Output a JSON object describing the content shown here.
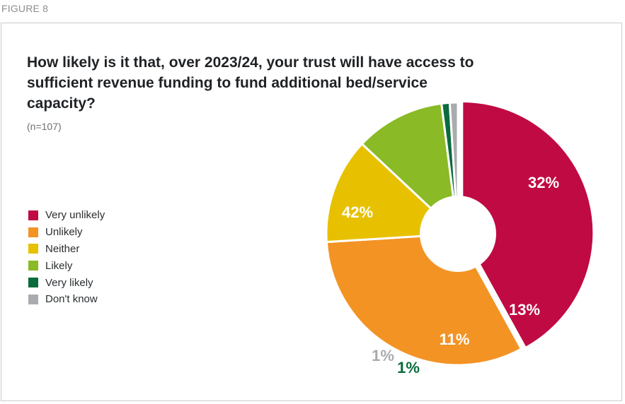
{
  "figure_label": "FIGURE 8",
  "chart_data": {
    "type": "pie",
    "title": "How likely is it that, over 2023/24, your trust will have access to sufficient revenue funding to fund additional bed/service capacity?",
    "subtitle": "(n=107)",
    "legend_position": "left",
    "categories": [
      "Very unlikely",
      "Unlikely",
      "Neither",
      "Likely",
      "Very likely",
      "Don't know"
    ],
    "values": [
      42,
      32,
      13,
      11,
      1,
      1
    ],
    "data_labels": [
      "42%",
      "32%",
      "13%",
      "11%",
      "1%",
      "1%"
    ],
    "colors": [
      "#c00a43",
      "#f39324",
      "#e7c100",
      "#8aba25",
      "#0a6b3c",
      "#a9abae"
    ],
    "label_colors": [
      "#ffffff",
      "#ffffff",
      "#ffffff",
      "#ffffff",
      "#0a6b3c",
      "#a9abae"
    ],
    "exploded": [
      "Very unlikely"
    ],
    "donut_hole": true
  }
}
